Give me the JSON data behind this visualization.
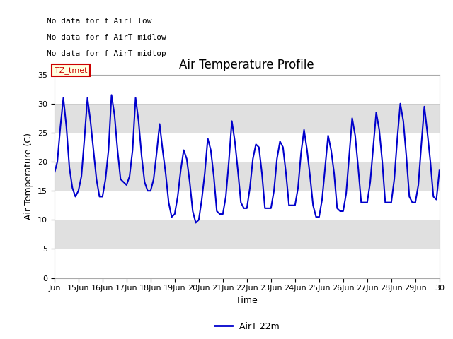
{
  "title": "Air Temperature Profile",
  "xlabel": "Time",
  "ylabel": "Air Temperature (C)",
  "legend_label": "AirT 22m",
  "legend_labels_no_data": [
    "No data for f AirT low",
    "No data for f AirT midlow",
    "No data for f AirT midtop"
  ],
  "tz_label": "TZ_tmet",
  "ylim": [
    0,
    35
  ],
  "yticks": [
    0,
    5,
    10,
    15,
    20,
    25,
    30,
    35
  ],
  "line_color": "#0000cc",
  "background_color": "#ffffff",
  "plot_bg_color": "#ffffff",
  "band_color": "#e0e0e0",
  "title_fontsize": 12,
  "axis_label_fontsize": 9,
  "tick_fontsize": 8,
  "time_data": [
    0.0,
    0.125,
    0.25,
    0.375,
    0.5,
    0.625,
    0.75,
    0.875,
    1.0,
    1.125,
    1.25,
    1.375,
    1.5,
    1.625,
    1.75,
    1.875,
    2.0,
    2.125,
    2.25,
    2.375,
    2.5,
    2.625,
    2.75,
    2.875,
    3.0,
    3.125,
    3.25,
    3.375,
    3.5,
    3.625,
    3.75,
    3.875,
    4.0,
    4.125,
    4.25,
    4.375,
    4.5,
    4.625,
    4.75,
    4.875,
    5.0,
    5.125,
    5.25,
    5.375,
    5.5,
    5.625,
    5.75,
    5.875,
    6.0,
    6.125,
    6.25,
    6.375,
    6.5,
    6.625,
    6.75,
    6.875,
    7.0,
    7.125,
    7.25,
    7.375,
    7.5,
    7.625,
    7.75,
    7.875,
    8.0,
    8.125,
    8.25,
    8.375,
    8.5,
    8.625,
    8.75,
    8.875,
    9.0,
    9.125,
    9.25,
    9.375,
    9.5,
    9.625,
    9.75,
    9.875,
    10.0,
    10.125,
    10.25,
    10.375,
    10.5,
    10.625,
    10.75,
    10.875,
    11.0,
    11.125,
    11.25,
    11.375,
    11.5,
    11.625,
    11.75,
    11.875,
    12.0,
    12.125,
    12.25,
    12.375,
    12.5,
    12.625,
    12.75,
    12.875,
    13.0,
    13.125,
    13.25,
    13.375,
    13.5,
    13.625,
    13.75,
    13.875,
    14.0,
    14.125,
    14.25,
    14.375,
    14.5,
    14.625,
    14.75,
    14.875,
    15.0,
    15.125,
    15.25,
    15.375,
    15.5,
    15.625,
    15.75,
    15.875,
    16.0
  ],
  "temp_data": [
    18.0,
    20.0,
    26.0,
    31.0,
    26.0,
    19.0,
    15.5,
    14.0,
    15.0,
    17.5,
    24.0,
    31.0,
    27.0,
    22.0,
    17.0,
    14.0,
    14.0,
    17.0,
    22.0,
    31.5,
    28.0,
    22.0,
    17.0,
    16.5,
    16.0,
    17.5,
    22.0,
    31.0,
    27.0,
    21.0,
    16.5,
    15.0,
    15.0,
    17.0,
    21.5,
    26.5,
    22.0,
    18.0,
    13.0,
    10.5,
    11.0,
    14.0,
    18.5,
    22.0,
    20.5,
    16.5,
    11.5,
    9.5,
    10.0,
    13.5,
    18.0,
    24.0,
    22.0,
    17.5,
    11.5,
    11.0,
    11.0,
    14.0,
    20.0,
    27.0,
    23.5,
    18.5,
    13.0,
    12.0,
    12.0,
    15.5,
    20.5,
    23.0,
    22.5,
    18.0,
    12.0,
    12.0,
    12.0,
    15.0,
    20.5,
    23.5,
    22.5,
    18.0,
    12.5,
    12.5,
    12.5,
    15.5,
    21.5,
    25.5,
    22.0,
    17.5,
    12.5,
    10.5,
    10.5,
    13.5,
    19.0,
    24.5,
    22.0,
    18.0,
    12.0,
    11.5,
    11.5,
    14.5,
    21.0,
    27.5,
    24.5,
    19.0,
    13.0,
    13.0,
    13.0,
    16.5,
    22.5,
    28.5,
    25.5,
    20.0,
    13.0,
    13.0,
    13.0,
    17.0,
    24.0,
    30.0,
    27.0,
    21.0,
    14.0,
    13.0,
    13.0,
    16.0,
    23.0,
    29.5,
    25.0,
    20.0,
    14.0,
    13.5,
    18.5
  ],
  "xtick_positions": [
    0,
    1,
    2,
    3,
    4,
    5,
    6,
    7,
    8,
    9,
    10,
    11,
    12,
    13,
    14,
    15,
    16
  ],
  "xtick_labels": [
    "Jun",
    "15Jun",
    "16Jun",
    "17Jun",
    "18Jun",
    "19Jun",
    "20Jun",
    "21Jun",
    "22Jun",
    "23Jun",
    "24Jun",
    "25Jun",
    "26Jun",
    "27Jun",
    "28Jun",
    "29Jun",
    "30"
  ]
}
